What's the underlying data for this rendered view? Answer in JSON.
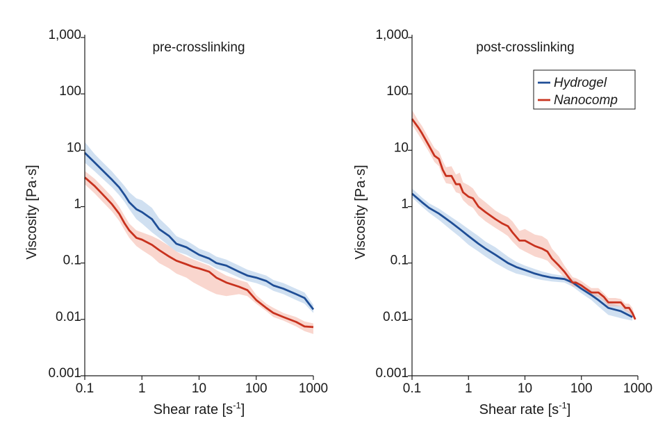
{
  "chart_data": [
    {
      "type": "line",
      "title": "pre-crosslinking",
      "xlabel": "Shear rate [s",
      "xlabel_sup": "-1",
      "xlabel_end": "]",
      "ylabel": "Viscosity [Pa·s]",
      "xscale": "log",
      "yscale": "log",
      "xlim": [
        0.1,
        1000
      ],
      "ylim": [
        0.001,
        1000
      ],
      "xticks": [
        0.1,
        1,
        10,
        100,
        1000
      ],
      "xtick_labels": [
        "0.1",
        "1",
        "10",
        "100",
        "1000"
      ],
      "yticks": [
        0.001,
        0.01,
        0.1,
        1,
        10,
        100,
        1000
      ],
      "ytick_labels": [
        "0.001",
        "0.01",
        "0.1",
        "1",
        "10",
        "100",
        "1,000"
      ],
      "series": [
        {
          "name": "Hydrogel",
          "color": "#1f4e96",
          "band_color": "#a9c6e6",
          "x": [
            0.1,
            0.15,
            0.2,
            0.3,
            0.4,
            0.5,
            0.6,
            0.8,
            1,
            1.5,
            2,
            3,
            4,
            6,
            8,
            10,
            15,
            20,
            30,
            50,
            70,
            100,
            150,
            200,
            300,
            500,
            700,
            1000
          ],
          "values": [
            9,
            6,
            4.5,
            3,
            2.2,
            1.6,
            1.2,
            0.9,
            0.8,
            0.6,
            0.4,
            0.3,
            0.22,
            0.19,
            0.16,
            0.14,
            0.12,
            0.1,
            0.09,
            0.07,
            0.06,
            0.055,
            0.048,
            0.04,
            0.035,
            0.028,
            0.024,
            0.015
          ],
          "lower": [
            6,
            4.2,
            3.2,
            2.2,
            1.6,
            1.2,
            0.9,
            0.6,
            0.5,
            0.35,
            0.28,
            0.2,
            0.16,
            0.14,
            0.12,
            0.11,
            0.095,
            0.08,
            0.07,
            0.055,
            0.048,
            0.044,
            0.038,
            0.032,
            0.028,
            0.022,
            0.019,
            0.013
          ],
          "upper": [
            14,
            8.5,
            6.3,
            4.2,
            3,
            2.3,
            1.8,
            1.4,
            1.3,
            0.95,
            0.62,
            0.42,
            0.3,
            0.25,
            0.21,
            0.18,
            0.155,
            0.13,
            0.115,
            0.09,
            0.076,
            0.068,
            0.06,
            0.05,
            0.044,
            0.035,
            0.03,
            0.018
          ]
        },
        {
          "name": "Nanocomp",
          "color": "#c8321e",
          "band_color": "#f4b4a6",
          "x": [
            0.1,
            0.15,
            0.2,
            0.3,
            0.4,
            0.5,
            0.6,
            0.8,
            1,
            1.5,
            2,
            3,
            4,
            6,
            8,
            10,
            15,
            20,
            30,
            50,
            70,
            100,
            150,
            200,
            300,
            500,
            700,
            1000
          ],
          "values": [
            3.3,
            2.3,
            1.7,
            1.1,
            0.75,
            0.5,
            0.38,
            0.28,
            0.26,
            0.21,
            0.17,
            0.13,
            0.11,
            0.095,
            0.085,
            0.08,
            0.07,
            0.055,
            0.045,
            0.038,
            0.033,
            0.022,
            0.016,
            0.013,
            0.011,
            0.009,
            0.0075,
            0.0073
          ],
          "lower": [
            2.5,
            1.7,
            1.25,
            0.82,
            0.56,
            0.38,
            0.28,
            0.2,
            0.17,
            0.13,
            0.1,
            0.08,
            0.065,
            0.055,
            0.045,
            0.04,
            0.032,
            0.028,
            0.026,
            0.028,
            0.026,
            0.019,
            0.014,
            0.011,
            0.0095,
            0.0075,
            0.0062,
            0.0055
          ],
          "upper": [
            4.3,
            3.1,
            2.3,
            1.5,
            1.0,
            0.68,
            0.5,
            0.38,
            0.35,
            0.3,
            0.26,
            0.2,
            0.16,
            0.13,
            0.115,
            0.105,
            0.09,
            0.075,
            0.06,
            0.05,
            0.045,
            0.027,
            0.019,
            0.016,
            0.013,
            0.011,
            0.0092,
            0.0085
          ]
        }
      ]
    },
    {
      "type": "line",
      "title": "post-crosslinking",
      "xlabel": "Shear rate [s",
      "xlabel_sup": "-1",
      "xlabel_end": "]",
      "ylabel": "Viscosity [Pa·s]",
      "xscale": "log",
      "yscale": "log",
      "xlim": [
        0.1,
        1000
      ],
      "ylim": [
        0.001,
        1000
      ],
      "xticks": [
        0.1,
        1,
        10,
        100,
        1000
      ],
      "xtick_labels": [
        "0.1",
        "1",
        "10",
        "100",
        "1000"
      ],
      "yticks": [
        0.001,
        0.01,
        0.1,
        1,
        10,
        100,
        1000
      ],
      "ytick_labels": [
        "0.001",
        "0.01",
        "0.1",
        "1",
        "10",
        "100",
        "1,000"
      ],
      "legend": {
        "position": "top-right",
        "entries": [
          "Hydrogel",
          "Nanocomp"
        ]
      },
      "series": [
        {
          "name": "Hydrogel",
          "color": "#1f4e96",
          "band_color": "#a9c6e6",
          "x": [
            0.1,
            0.15,
            0.2,
            0.3,
            0.5,
            0.7,
            1,
            1.5,
            2,
            3,
            5,
            7,
            10,
            15,
            20,
            30,
            50,
            70,
            100,
            150,
            200,
            300,
            500,
            800
          ],
          "values": [
            1.7,
            1.2,
            0.95,
            0.75,
            0.52,
            0.4,
            0.3,
            0.22,
            0.18,
            0.14,
            0.1,
            0.085,
            0.075,
            0.065,
            0.06,
            0.055,
            0.052,
            0.045,
            0.035,
            0.027,
            0.022,
            0.016,
            0.014,
            0.011
          ],
          "lower": [
            1.45,
            1.0,
            0.78,
            0.58,
            0.38,
            0.29,
            0.21,
            0.16,
            0.13,
            0.1,
            0.075,
            0.065,
            0.06,
            0.053,
            0.05,
            0.047,
            0.045,
            0.038,
            0.029,
            0.022,
            0.017,
            0.012,
            0.0105,
            0.0095
          ],
          "upper": [
            2.1,
            1.45,
            1.15,
            0.92,
            0.65,
            0.52,
            0.4,
            0.3,
            0.24,
            0.19,
            0.13,
            0.105,
            0.09,
            0.078,
            0.071,
            0.064,
            0.059,
            0.052,
            0.042,
            0.033,
            0.027,
            0.02,
            0.017,
            0.013
          ]
        },
        {
          "name": "Nanocomp",
          "color": "#c8321e",
          "band_color": "#f4b4a6",
          "x": [
            0.1,
            0.13,
            0.15,
            0.2,
            0.25,
            0.3,
            0.35,
            0.4,
            0.5,
            0.6,
            0.7,
            0.8,
            1,
            1.2,
            1.5,
            2,
            3,
            4,
            5,
            6,
            8,
            10,
            15,
            20,
            25,
            30,
            40,
            50,
            60,
            70,
            80,
            100,
            120,
            150,
            200,
            250,
            300,
            400,
            500,
            600,
            700,
            800,
            900
          ],
          "values": [
            36,
            25,
            20,
            12,
            8,
            7,
            4.5,
            3.5,
            3.5,
            2.5,
            2.5,
            1.8,
            1.5,
            1.4,
            1.0,
            0.8,
            0.6,
            0.5,
            0.45,
            0.35,
            0.25,
            0.25,
            0.2,
            0.18,
            0.16,
            0.12,
            0.09,
            0.07,
            0.055,
            0.045,
            0.045,
            0.04,
            0.035,
            0.03,
            0.03,
            0.025,
            0.02,
            0.02,
            0.02,
            0.016,
            0.016,
            0.013,
            0.01
          ],
          "lower": [
            28,
            19,
            15,
            9.3,
            6.2,
            5.2,
            3.4,
            2.6,
            2.5,
            1.8,
            1.7,
            1.3,
            1.05,
            0.95,
            0.7,
            0.55,
            0.42,
            0.35,
            0.3,
            0.24,
            0.18,
            0.16,
            0.13,
            0.12,
            0.11,
            0.09,
            0.07,
            0.055,
            0.045,
            0.038,
            0.038,
            0.034,
            0.03,
            0.026,
            0.025,
            0.021,
            0.017,
            0.017,
            0.017,
            0.014,
            0.013,
            0.011,
            0.0095
          ],
          "upper": [
            52,
            33,
            27,
            16,
            11,
            9.5,
            6.5,
            5,
            5.2,
            3.7,
            4,
            2.7,
            2.4,
            2.1,
            1.5,
            1.2,
            0.85,
            0.72,
            0.65,
            0.55,
            0.37,
            0.4,
            0.32,
            0.3,
            0.26,
            0.18,
            0.13,
            0.09,
            0.07,
            0.056,
            0.054,
            0.048,
            0.042,
            0.036,
            0.036,
            0.029,
            0.024,
            0.024,
            0.023,
            0.019,
            0.019,
            0.016,
            0.011
          ]
        }
      ]
    }
  ]
}
